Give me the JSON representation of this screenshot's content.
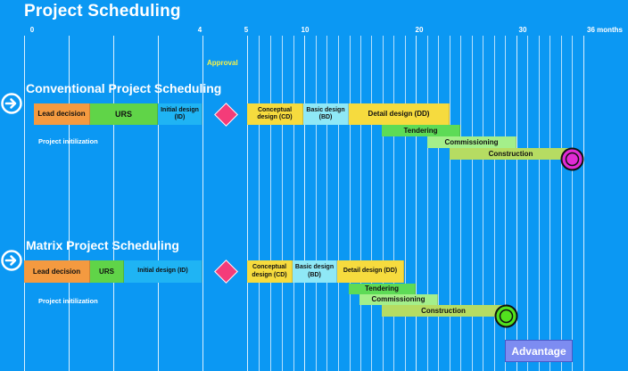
{
  "title": "Project Scheduling",
  "axis": {
    "ticks": [
      "0",
      "4",
      "5",
      "10",
      "20",
      "30",
      "36 months"
    ]
  },
  "approval_label": "Approval",
  "conventional": {
    "title": "Conventional Project Scheduling",
    "init_label": "Project initilization",
    "bars": {
      "lead": "Lead decision",
      "urs": "URS",
      "id": "Initial design (ID)",
      "cd": "Conceptual design (CD)",
      "bd": "Basic design (BD)",
      "dd": "Detail design (DD)",
      "tendering": "Tendering",
      "commissioning": "Commissioning",
      "construction": "Construction"
    }
  },
  "matrix": {
    "title": "Matrix Project Scheduling",
    "init_label": "Project initilization",
    "bars": {
      "lead": "Lead decision",
      "urs": "URS",
      "id": "Initial design (ID)",
      "cd": "Conceptual design (CD)",
      "bd": "Basic design (BD)",
      "dd": "Detail design (DD)",
      "tendering": "Tendering",
      "commissioning": "Commissioning",
      "construction": "Construction"
    }
  },
  "advantage_label": "Advantage",
  "colors": {
    "background": "#0b98f3",
    "conventional_end_marker": "#e02bd5",
    "matrix_end_marker": "#52e21e",
    "milestone": "#f43c79"
  },
  "icons": [
    "arrow-right-circle-icon",
    "milestone-diamond-icon",
    "end-marker-icon"
  ]
}
